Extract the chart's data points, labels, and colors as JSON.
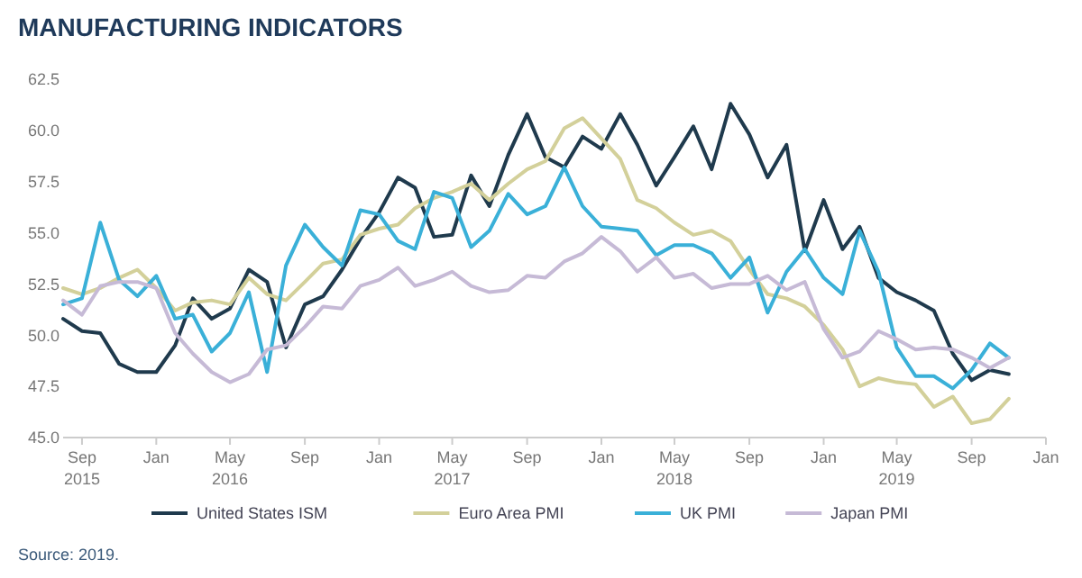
{
  "chart_data": {
    "type": "line",
    "title": "MANUFACTURING INDICATORS",
    "annotations": [
      "Source: 2019."
    ],
    "x": [
      "2015-08",
      "2015-09",
      "2015-10",
      "2015-11",
      "2015-12",
      "2016-01",
      "2016-02",
      "2016-03",
      "2016-04",
      "2016-05",
      "2016-06",
      "2016-07",
      "2016-08",
      "2016-09",
      "2016-10",
      "2016-11",
      "2016-12",
      "2017-01",
      "2017-02",
      "2017-03",
      "2017-04",
      "2017-05",
      "2017-06",
      "2017-07",
      "2017-08",
      "2017-09",
      "2017-10",
      "2017-11",
      "2017-12",
      "2018-01",
      "2018-02",
      "2018-03",
      "2018-04",
      "2018-05",
      "2018-06",
      "2018-07",
      "2018-08",
      "2018-09",
      "2018-10",
      "2018-11",
      "2018-12",
      "2019-01",
      "2019-02",
      "2019-03",
      "2019-04",
      "2019-05",
      "2019-06",
      "2019-07",
      "2019-08",
      "2019-09",
      "2019-10",
      "2019-11"
    ],
    "series": [
      {
        "name": "United States ISM",
        "color": "#1f3a4d",
        "values": [
          50.8,
          50.2,
          50.1,
          48.6,
          48.2,
          48.2,
          49.5,
          51.8,
          50.8,
          51.3,
          53.2,
          52.6,
          49.4,
          51.5,
          51.9,
          53.2,
          54.7,
          56.0,
          57.7,
          57.2,
          54.8,
          54.9,
          57.8,
          56.3,
          58.8,
          60.8,
          58.7,
          58.2,
          59.7,
          59.1,
          60.8,
          59.3,
          57.3,
          58.7,
          60.2,
          58.1,
          61.3,
          59.8,
          57.7,
          59.3,
          54.1,
          56.6,
          54.2,
          55.3,
          52.8,
          52.1,
          51.7,
          51.2,
          49.1,
          47.8,
          48.3,
          48.1
        ]
      },
      {
        "name": "Euro Area PMI",
        "color": "#d3d09a",
        "values": [
          52.3,
          52.0,
          52.3,
          52.8,
          53.2,
          52.3,
          51.2,
          51.6,
          51.7,
          51.5,
          52.8,
          52.0,
          51.7,
          52.6,
          53.5,
          53.7,
          54.9,
          55.2,
          55.4,
          56.2,
          56.7,
          57.0,
          57.4,
          56.6,
          57.4,
          58.1,
          58.5,
          60.1,
          60.6,
          59.6,
          58.6,
          56.6,
          56.2,
          55.5,
          54.9,
          55.1,
          54.6,
          53.2,
          52.0,
          51.8,
          51.4,
          50.5,
          49.3,
          47.5,
          47.9,
          47.7,
          47.6,
          46.5,
          47.0,
          45.7,
          45.9,
          46.9
        ]
      },
      {
        "name": "UK PMI",
        "color": "#3ab0d8",
        "values": [
          51.5,
          51.8,
          55.5,
          52.7,
          51.9,
          52.9,
          50.8,
          51.0,
          49.2,
          50.1,
          52.1,
          48.2,
          53.4,
          55.4,
          54.3,
          53.4,
          56.1,
          55.9,
          54.6,
          54.2,
          57.0,
          56.7,
          54.3,
          55.1,
          56.9,
          55.9,
          56.3,
          58.2,
          56.3,
          55.3,
          55.2,
          55.1,
          53.9,
          54.4,
          54.4,
          54.0,
          52.8,
          53.8,
          51.1,
          53.1,
          54.2,
          52.8,
          52.0,
          55.1,
          53.1,
          49.4,
          48.0,
          48.0,
          47.4,
          48.3,
          49.6,
          48.9
        ]
      },
      {
        "name": "Japan PMI",
        "color": "#c6bad6",
        "values": [
          51.7,
          51.0,
          52.4,
          52.6,
          52.6,
          52.3,
          50.1,
          49.1,
          48.2,
          47.7,
          48.1,
          49.3,
          49.5,
          50.4,
          51.4,
          51.3,
          52.4,
          52.7,
          53.3,
          52.4,
          52.7,
          53.1,
          52.4,
          52.1,
          52.2,
          52.9,
          52.8,
          53.6,
          54.0,
          54.8,
          54.1,
          53.1,
          53.8,
          52.8,
          53.0,
          52.3,
          52.5,
          52.5,
          52.9,
          52.2,
          52.6,
          50.3,
          48.9,
          49.2,
          50.2,
          49.8,
          49.3,
          49.4,
          49.3,
          48.9,
          48.4,
          48.9
        ]
      }
    ],
    "xlim": [
      "2015-08",
      "2020-01"
    ],
    "xticks": [
      {
        "value": "2015-09",
        "label": "Sep\n2015"
      },
      {
        "value": "2016-01",
        "label": "Jan"
      },
      {
        "value": "2016-05",
        "label": "May\n2016"
      },
      {
        "value": "2016-09",
        "label": "Sep"
      },
      {
        "value": "2017-01",
        "label": "Jan"
      },
      {
        "value": "2017-05",
        "label": "May\n2017"
      },
      {
        "value": "2017-09",
        "label": "Sep"
      },
      {
        "value": "2018-01",
        "label": "Jan"
      },
      {
        "value": "2018-05",
        "label": "May\n2018"
      },
      {
        "value": "2018-09",
        "label": "Sep"
      },
      {
        "value": "2019-01",
        "label": "Jan"
      },
      {
        "value": "2019-05",
        "label": "May\n2019"
      },
      {
        "value": "2019-09",
        "label": "Sep"
      },
      {
        "value": "2020-01",
        "label": "Jan"
      }
    ],
    "ylim": [
      45,
      62.5
    ],
    "yticks": [
      {
        "value": 45,
        "label": "45.0"
      },
      {
        "value": 47.5,
        "label": "47.5"
      },
      {
        "value": 50,
        "label": "50.0"
      },
      {
        "value": 52.5,
        "label": "52.5"
      },
      {
        "value": 55,
        "label": "55.0"
      },
      {
        "value": 57.5,
        "label": "57.5"
      },
      {
        "value": 60,
        "label": "60.0"
      },
      {
        "value": 62.5,
        "label": "62.5"
      }
    ],
    "grid": false,
    "legend": "bottom",
    "marker": "none",
    "line_style": "solid"
  }
}
